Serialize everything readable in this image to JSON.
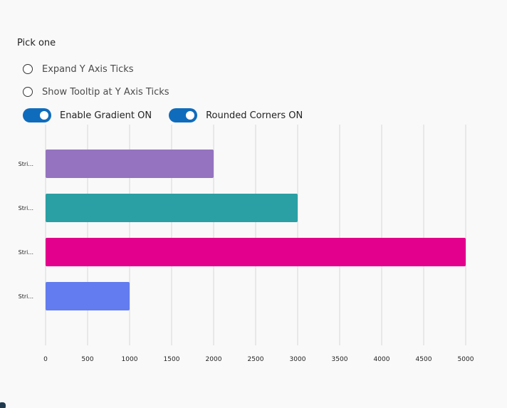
{
  "controls": {
    "pick_label": "Pick one",
    "radios": [
      {
        "label": "Expand Y Axis Ticks",
        "checked": false
      },
      {
        "label": "Show Tooltip at Y Axis Ticks",
        "checked": false
      }
    ],
    "toggles": [
      {
        "label": "Enable Gradient ON",
        "on": true
      },
      {
        "label": "Rounded Corners ON",
        "on": true
      }
    ],
    "toggle_color": "#0f6cbd"
  },
  "chart_data": {
    "type": "bar",
    "orientation": "horizontal",
    "categories": [
      "Stri...",
      "Stri...",
      "Stri...",
      "Stri..."
    ],
    "values": [
      2000,
      3000,
      5000,
      1000
    ],
    "colors": [
      "#9573c0",
      "#2aa0a4",
      "#e3008c",
      "#637cef"
    ],
    "xlim": [
      0,
      5000
    ],
    "xticks": [
      0,
      500,
      1000,
      1500,
      2000,
      2500,
      3000,
      3500,
      4000,
      4500,
      5000
    ],
    "grid": true
  }
}
